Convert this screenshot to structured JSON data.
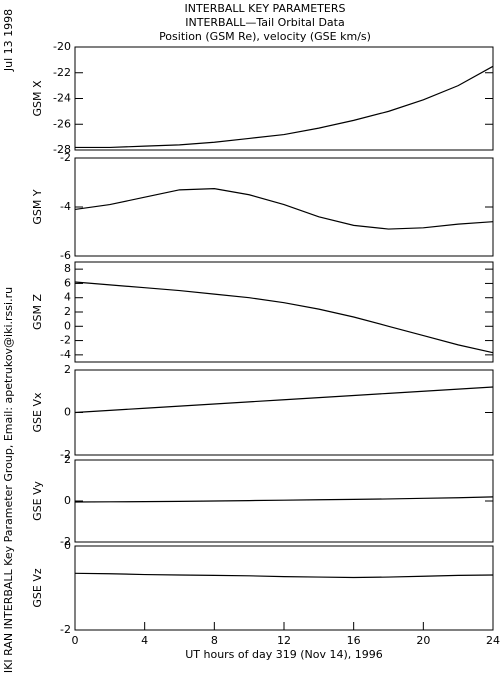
{
  "header": {
    "title": "INTERBALL KEY PARAMETERS",
    "subtitle": "INTERBALL—Tail Orbital Data",
    "description": "Position (GSM Re), velocity (GSE km/s)",
    "date": "Jul 13 1998",
    "credit": "IKI RAN INTERBALL Key Parameter Group, Email: apetrukov@iki.rssi.ru"
  },
  "chart_data": [
    {
      "type": "line",
      "y_label": "GSM X",
      "ylim": [
        -28,
        -20
      ],
      "yticks": [
        -28,
        -26,
        -24,
        -22,
        -20
      ],
      "xlim": [
        0,
        24
      ],
      "x": [
        0,
        2,
        4,
        6,
        8,
        10,
        12,
        14,
        16,
        18,
        20,
        22,
        24
      ],
      "values": [
        -27.8,
        -27.8,
        -27.7,
        -27.6,
        -27.4,
        -27.1,
        -26.8,
        -26.3,
        -25.7,
        -25.0,
        -24.1,
        -23.0,
        -21.5
      ]
    },
    {
      "type": "line",
      "y_label": "GSM Y",
      "ylim": [
        -6,
        -2
      ],
      "yticks": [
        -6,
        -4,
        -2
      ],
      "xlim": [
        0,
        24
      ],
      "x": [
        0,
        2,
        4,
        6,
        8,
        10,
        12,
        14,
        16,
        18,
        20,
        22,
        24
      ],
      "values": [
        -4.1,
        -3.9,
        -3.6,
        -3.3,
        -3.25,
        -3.5,
        -3.9,
        -4.4,
        -4.75,
        -4.9,
        -4.85,
        -4.7,
        -4.6
      ]
    },
    {
      "type": "line",
      "y_label": "GSM Z",
      "ylim": [
        -5,
        9
      ],
      "yticks": [
        -4,
        -2,
        0,
        2,
        4,
        6,
        8
      ],
      "xlim": [
        0,
        24
      ],
      "x": [
        0,
        2,
        4,
        6,
        8,
        10,
        12,
        14,
        16,
        18,
        20,
        22,
        24
      ],
      "values": [
        6.2,
        5.8,
        5.4,
        5.0,
        4.5,
        4.0,
        3.3,
        2.4,
        1.3,
        0,
        -1.3,
        -2.6,
        -3.7
      ]
    },
    {
      "type": "line",
      "y_label": "GSE Vx",
      "ylim": [
        -2,
        2
      ],
      "yticks": [
        -2,
        0,
        2
      ],
      "xlim": [
        0,
        24
      ],
      "x": [
        0,
        2,
        4,
        6,
        8,
        10,
        12,
        14,
        16,
        18,
        20,
        22,
        24
      ],
      "values": [
        0,
        0.1,
        0.2,
        0.3,
        0.4,
        0.5,
        0.6,
        0.7,
        0.8,
        0.9,
        1.0,
        1.1,
        1.2
      ]
    },
    {
      "type": "line",
      "y_label": "GSE Vy",
      "ylim": [
        -2,
        2
      ],
      "yticks": [
        -2,
        0,
        2
      ],
      "xlim": [
        0,
        24
      ],
      "x": [
        0,
        2,
        4,
        6,
        8,
        10,
        12,
        14,
        16,
        18,
        20,
        22,
        24
      ],
      "values": [
        -0.05,
        -0.04,
        -0.03,
        -0.02,
        0,
        0.02,
        0.04,
        0.06,
        0.08,
        0.1,
        0.13,
        0.16,
        0.2
      ]
    },
    {
      "type": "line",
      "y_label": "GSE Vz",
      "ylim": [
        -2,
        0
      ],
      "yticks": [
        -2,
        0
      ],
      "xlim": [
        0,
        24
      ],
      "x": [
        0,
        2,
        4,
        6,
        8,
        10,
        12,
        14,
        16,
        18,
        20,
        22,
        24
      ],
      "values": [
        -0.65,
        -0.66,
        -0.68,
        -0.69,
        -0.7,
        -0.71,
        -0.73,
        -0.74,
        -0.75,
        -0.74,
        -0.72,
        -0.7,
        -0.69
      ],
      "xticks": [
        0,
        4,
        8,
        12,
        16,
        20,
        24
      ],
      "x_label": "UT hours of day 319 (Nov 14), 1996"
    }
  ]
}
